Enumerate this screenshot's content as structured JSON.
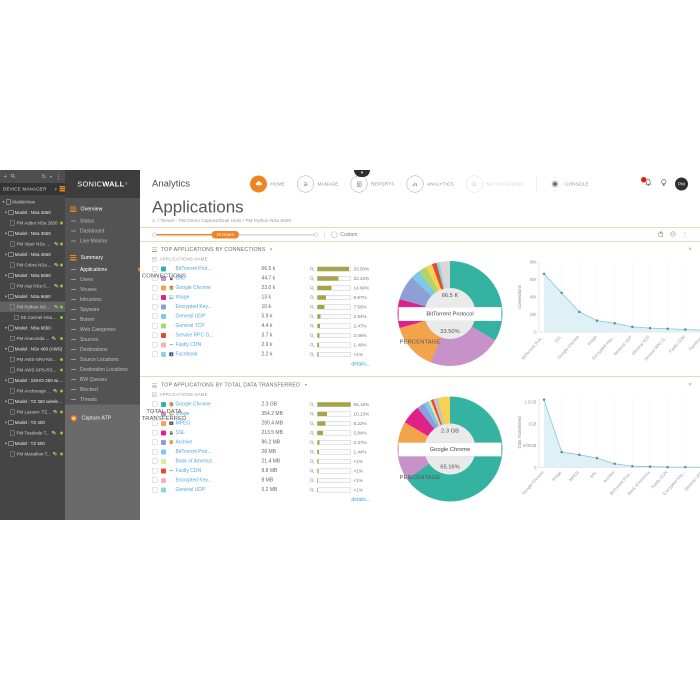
{
  "device_tree": {
    "title": "DEVICE MANAGER",
    "items": [
      {
        "label": "MobileView",
        "type": "root"
      },
      {
        "label": "Model : NSa 2650",
        "type": "model"
      },
      {
        "label": "PM Adder NSa 2650",
        "type": "unit",
        "online": true
      },
      {
        "label": "Model : NSa 3650",
        "type": "model"
      },
      {
        "label": "PM Viper NSa 3...",
        "type": "unit",
        "online": true,
        "extra": true
      },
      {
        "label": "Model : NSa 4650",
        "type": "model"
      },
      {
        "label": "PM Cobra NSa ...",
        "type": "unit",
        "online": true,
        "extra": true
      },
      {
        "label": "Model : NSa 5650",
        "type": "model"
      },
      {
        "label": "PM Asp NSa 56...",
        "type": "unit",
        "online": true,
        "extra": true
      },
      {
        "label": "Model : NSa 6650",
        "type": "model"
      },
      {
        "label": "PM Python NSa...",
        "type": "unit",
        "online": true,
        "extra": true,
        "selected": true
      },
      {
        "label": "SE Carmel NSa6650",
        "type": "unit",
        "online": true,
        "child": true
      },
      {
        "label": "Model : NSa 9650",
        "type": "model"
      },
      {
        "label": "PM Anaconda ...",
        "type": "unit",
        "online": true,
        "extra": true
      },
      {
        "label": "Model : NSv 400 (AWS)",
        "type": "model"
      },
      {
        "label": "PM AWS-SRV-NS...",
        "type": "unit",
        "online": true
      },
      {
        "label": "PM AWS-SPS-RS...",
        "type": "unit",
        "online": true
      },
      {
        "label": "Model : SOHO 250 wirele...",
        "type": "model"
      },
      {
        "label": "PM Anchorage ...",
        "type": "unit",
        "online": true,
        "extra": true
      },
      {
        "label": "Model : TZ 350 wireless ...",
        "type": "model"
      },
      {
        "label": "PM Lassen- TZ...",
        "type": "unit",
        "online": true,
        "extra": true
      },
      {
        "label": "Model : TZ 400",
        "type": "model"
      },
      {
        "label": "PM Toadvale T...",
        "type": "unit",
        "online": true,
        "extra": true
      },
      {
        "label": "Model : TZ 600",
        "type": "model"
      },
      {
        "label": "PM Marathon T...",
        "type": "unit",
        "online": true,
        "extra": true
      }
    ]
  },
  "nav_menu": {
    "brand_left": "SONIC",
    "brand_right": "WALL",
    "sections": [
      {
        "header": "Overview",
        "items": [
          "Status",
          "Dashboard",
          "Live Monitor"
        ]
      },
      {
        "header": "Summary",
        "items": [
          "Applications",
          "Users",
          "Viruses",
          "Intrusions",
          "Spyware",
          "Botnet",
          "Web Categories",
          "Sources",
          "Destinations",
          "Source Locations",
          "Destination Locations",
          "BW Queues",
          "Blocked",
          "Threats"
        ]
      }
    ],
    "active_item": "Applications",
    "footer_item": "Capture ATP"
  },
  "header": {
    "app_name": "Analytics",
    "nav": [
      {
        "label": "HOME",
        "icon": "cloud-icon",
        "style": "filled"
      },
      {
        "label": "MANAGE",
        "icon": "manage-icon",
        "style": "ring"
      },
      {
        "label": "REPORTS",
        "icon": "reports-icon",
        "style": "ring"
      },
      {
        "label": "ANALYTICS",
        "icon": "analytics-icon",
        "style": "ring"
      },
      {
        "label": "NOTIFICATIONS",
        "icon": "bell-icon",
        "style": "disabled"
      },
      {
        "label": "CONSOLE",
        "icon": "gear-icon",
        "style": "plain"
      }
    ],
    "avatar_initials": "PM",
    "page_title": "Applications",
    "breadcrumb": "/ Tenant - PM Demo Capture/Dual Units / PM Python NSa 6650",
    "time_slider": {
      "selected": "24 Hours",
      "custom_label": "Custom"
    }
  },
  "sections": [
    {
      "title": "TOP APPLICATIONS BY CONNECTIONS",
      "columns": [
        "APPLICATIONS NAME",
        "CONNECTIONS",
        "PERCENTAGE"
      ],
      "details_label": "details...",
      "rows": [
        {
          "name": "BitTorrent Prot...",
          "value": "66.5 k",
          "pct": "33.50%",
          "pct_num": 33.5,
          "color": "#35b3a2"
        },
        {
          "name": "SSL",
          "value": "44.7 k",
          "pct": "22.42%",
          "pct_num": 22.42,
          "color": "#c792c9",
          "icon": "lock-icon"
        },
        {
          "name": "Google Chrome",
          "value": "23.0 k",
          "pct": "14.60%",
          "pct_num": 14.6,
          "color": "#f2a34c",
          "icon": "chrome-icon"
        },
        {
          "name": "Image",
          "value": "13 k",
          "pct": "8.87%",
          "pct_num": 8.87,
          "color": "#e0218a",
          "icon": "image-icon"
        },
        {
          "name": "Encrypted Key...",
          "value": "10 k",
          "pct": "7.56%",
          "pct_num": 7.56,
          "color": "#8e9fd6"
        },
        {
          "name": "General UDP",
          "value": "5.9 k",
          "pct": "2.94%",
          "pct_num": 2.94,
          "color": "#7ec8ea"
        },
        {
          "name": "General TCP",
          "value": "4.4 k",
          "pct": "2.47%",
          "pct_num": 2.47,
          "color": "#aed46e"
        },
        {
          "name": "Service RPC G...",
          "value": "3.7 k",
          "pct": "2.06%",
          "pct_num": 2.06,
          "color": "#e24a33"
        },
        {
          "name": "Fastly CDN",
          "value": "2.9 k",
          "pct": "1.40%",
          "pct_num": 1.4,
          "color": "#f2b3bd",
          "icon": "dash-icon"
        },
        {
          "name": "Facebook",
          "value": "2.2 k",
          "pct": "<1%",
          "pct_num": 0.9,
          "color": "#8fd4d9",
          "icon": "facebook-icon"
        }
      ],
      "donut": {
        "center_value": "66.5 K",
        "center_name": "BitTorrent Protocol",
        "center_pct": "33.50%",
        "slices": [
          {
            "pct": 33.5,
            "color": "#35b3a2"
          },
          {
            "pct": 22.42,
            "color": "#c792c9"
          },
          {
            "pct": 14.6,
            "color": "#f2a34c"
          },
          {
            "pct": 8.87,
            "color": "#e0218a"
          },
          {
            "pct": 7.56,
            "color": "#8e9fd6"
          },
          {
            "pct": 2.94,
            "color": "#7ec8ea"
          },
          {
            "pct": 2.47,
            "color": "#aed46e"
          },
          {
            "pct": 2.06,
            "color": "#f7d154"
          },
          {
            "pct": 1.4,
            "color": "#e24a33"
          },
          {
            "pct": 0.9,
            "color": "#8fd4d9"
          }
        ],
        "remainder_color": "#d8d8d8"
      },
      "line_chart": {
        "type": "line",
        "ylabel": "Connections",
        "ymax": 80,
        "yticks": [
          {
            "label": "80k",
            "v": 80
          },
          {
            "label": "60k",
            "v": 60
          },
          {
            "label": "40k",
            "v": 40
          },
          {
            "label": "20k",
            "v": 20
          },
          {
            "label": "0",
            "v": 0
          }
        ],
        "values": [
          66.5,
          44.7,
          23,
          13,
          10,
          5.9,
          4.4,
          3.7,
          2.9,
          2.2
        ],
        "labels": [
          "BitTorrent Prot...",
          "SSL",
          "Google Chrome",
          "Image",
          "Encrypted Key...",
          "General UDP",
          "General TCP",
          "Service RPC G...",
          "Fastly CDN",
          "Facebook"
        ]
      }
    },
    {
      "title": "TOP APPLICATIONS BY TOTAL DATA TRANSFERRED",
      "columns": [
        "APPLICATIONS NAME",
        "TOTAL DATA TRANSFERRED",
        "PERCENTAGE"
      ],
      "details_label": "details...",
      "rows": [
        {
          "name": "Google Chrome",
          "value": "2.3 GB",
          "pct": "65.16%",
          "pct_num": 65.16,
          "color": "#35b3a2",
          "icon": "chrome-icon"
        },
        {
          "name": "Image",
          "value": "354.2 MB",
          "pct": "10.13%",
          "pct_num": 10.13,
          "color": "#c792c9",
          "icon": "image-icon"
        },
        {
          "name": "MPEG",
          "value": "290.4 MB",
          "pct": "8.22%",
          "pct_num": 8.22,
          "color": "#f2a34c",
          "icon": "video-icon"
        },
        {
          "name": "SSL",
          "value": "213.5 MB",
          "pct": "5.84%",
          "pct_num": 5.84,
          "color": "#e0218a",
          "icon": "lock-icon"
        },
        {
          "name": "Archive",
          "value": "86.2 MB",
          "pct": "2.37%",
          "pct_num": 2.37,
          "color": "#8e9fd6",
          "icon": "archive-icon"
        },
        {
          "name": "BitTorrent Prot...",
          "value": "28 MB",
          "pct": "1.44%",
          "pct_num": 1.44,
          "color": "#7ec8ea"
        },
        {
          "name": "Bank of America",
          "value": "21.4 MB",
          "pct": "<1%",
          "pct_num": 0.9,
          "color": "#dde8a0"
        },
        {
          "name": "Fastly CDN",
          "value": "9.8 MB",
          "pct": "<1%",
          "pct_num": 0.8,
          "color": "#e24a33",
          "icon": "dash-icon"
        },
        {
          "name": "Encrypted Key...",
          "value": "8 MB",
          "pct": "<1%",
          "pct_num": 0.7,
          "color": "#f2b3bd"
        },
        {
          "name": "General UDP",
          "value": "5.2 MB",
          "pct": "<1%",
          "pct_num": 0.6,
          "color": "#8fd4d9"
        }
      ],
      "donut": {
        "center_value": "2.3 GB",
        "center_name": "Google Chrome",
        "center_pct": "65.16%",
        "slices": [
          {
            "pct": 65.16,
            "color": "#35b3a2"
          },
          {
            "pct": 10.13,
            "color": "#c792c9"
          },
          {
            "pct": 8.22,
            "color": "#f2a34c"
          },
          {
            "pct": 5.84,
            "color": "#e0218a"
          },
          {
            "pct": 2.37,
            "color": "#8e9fd6"
          },
          {
            "pct": 1.44,
            "color": "#7ec8ea"
          },
          {
            "pct": 0.9,
            "color": "#dde8a0"
          },
          {
            "pct": 0.8,
            "color": "#e24a33"
          },
          {
            "pct": 0.7,
            "color": "#f2b3bd"
          },
          {
            "pct": 0.6,
            "color": "#8fd4d9"
          }
        ],
        "remainder_color": "#f7d154"
      },
      "line_chart": {
        "type": "line",
        "ylabel": "Data Transferred",
        "ymax": 1600,
        "yticks": [
          {
            "label": "1.5GB",
            "v": 1500
          },
          {
            "label": "1GB",
            "v": 1000
          },
          {
            "label": "500MB",
            "v": 500
          },
          {
            "label": "0",
            "v": 0
          }
        ],
        "values": [
          2355,
          354.2,
          290.4,
          213.5,
          86.2,
          28,
          21.4,
          9.8,
          8,
          5.2
        ],
        "labels": [
          "Google Chrome",
          "Image",
          "MPEG",
          "SSL",
          "Archive",
          "BitTorrent Prot...",
          "Bank of America",
          "Fastly CDN",
          "Encrypted Key...",
          "General UDP"
        ]
      }
    }
  ]
}
